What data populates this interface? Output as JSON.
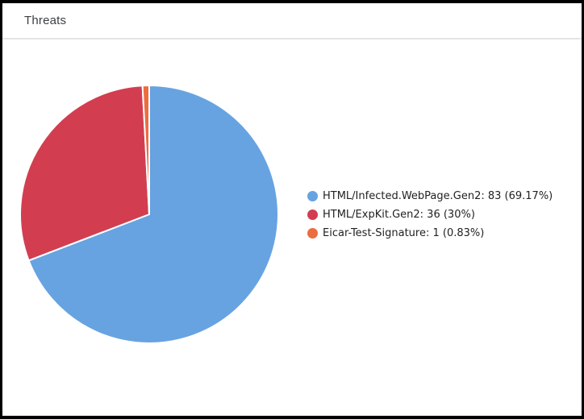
{
  "header": {
    "title": "Threats"
  },
  "chart_data": {
    "type": "pie",
    "title": "Threats",
    "legend_position": "right",
    "slices": [
      {
        "label": "HTML/Infected.WebPage.Gen2",
        "value": 83,
        "percent_label": "69.17%",
        "legend_text": "HTML/Infected.WebPage.Gen2: 83 (69.17%)",
        "color": "#67a3e1"
      },
      {
        "label": "HTML/ExpKit.Gen2",
        "value": 36,
        "percent_label": "30%",
        "legend_text": "HTML/ExpKit.Gen2: 36 (30%)",
        "color": "#d23e50"
      },
      {
        "label": "Eicar-Test-Signature",
        "value": 1,
        "percent_label": "0.83%",
        "legend_text": "Eicar-Test-Signature: 1 (0.83%)",
        "color": "#ed6c3f"
      }
    ]
  }
}
